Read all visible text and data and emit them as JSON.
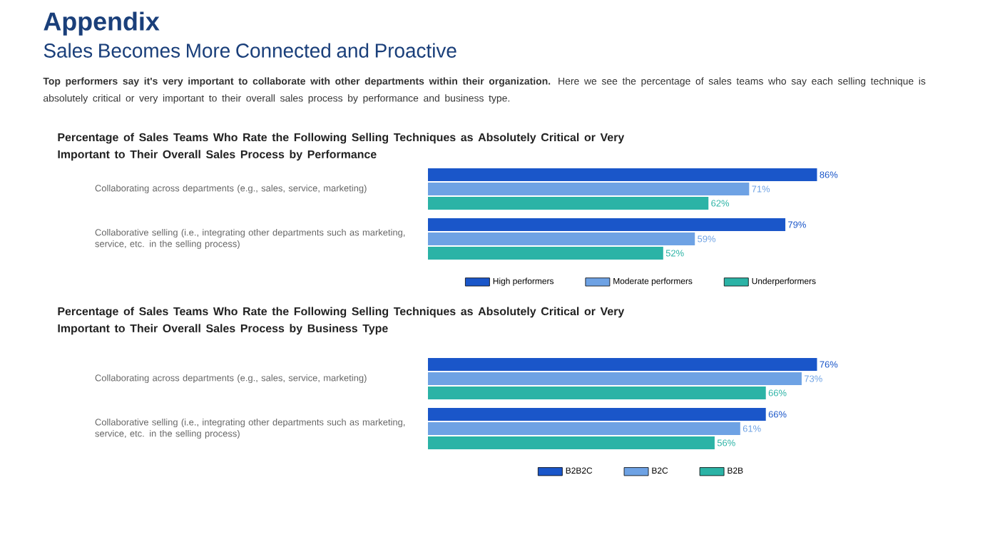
{
  "chart_data": [
    {
      "type": "bar",
      "orientation": "horizontal",
      "title": "Percentage of Sales Teams Who Rate the Following Selling Techniques as Absolutely Critical or Very Important to Their Overall Sales Process by Performance",
      "annotations": [
        "Appendix",
        "Sales Becomes More Connected and Proactive",
        "**Top performers say it's very important to collaborate with other departments within their organization.** Here we see the percentage of sales teams who say each selling technique is absolutely critical or very important to their overall sales process by performance and business type."
      ],
      "categories": [
        "Collaborating across departments (e.g., sales, service, marketing)",
        "Collaborative selling (i.e., integrating other departments such as marketing, service, etc. in the selling process)"
      ],
      "series": [
        {
          "name": "High performers",
          "color": "#1a56c9",
          "values": [
            86,
            79
          ],
          "value_labels": [
            "86%",
            "79%"
          ]
        },
        {
          "name": "Moderate performers",
          "color": "#6ea2e4",
          "values": [
            71,
            59
          ],
          "value_labels": [
            "71%",
            "59%"
          ]
        },
        {
          "name": "Underperformers",
          "color": "#2bb3a6",
          "values": [
            62,
            52
          ],
          "value_labels": [
            "62%",
            "52%"
          ]
        }
      ],
      "tick_labels": "y",
      "legend": "bottom"
    },
    {
      "type": "bar",
      "orientation": "horizontal",
      "title": "Percentage of Sales Teams Who Rate the Following Selling Techniques as Absolutely Critical or Very Important to Their Overall Sales Process by Business Type",
      "categories": [
        "Collaborating across departments (e.g., sales, service, marketing)",
        "Collaborative selling (i.e., integrating other departments such as marketing, service, etc. in the selling process)"
      ],
      "series": [
        {
          "name": "B2B2C",
          "color": "#1a56c9",
          "values": [
            76,
            66
          ],
          "value_labels": [
            "76%",
            "66%"
          ]
        },
        {
          "name": "B2C",
          "color": "#6ea2e4",
          "values": [
            73,
            61
          ],
          "value_labels": [
            "73%",
            "61%"
          ]
        },
        {
          "name": "B2B",
          "color": "#2bb3a6",
          "values": [
            66,
            56
          ],
          "value_labels": [
            "66%",
            "56%"
          ]
        }
      ],
      "tick_labels": "y",
      "legend": "bottom"
    }
  ]
}
